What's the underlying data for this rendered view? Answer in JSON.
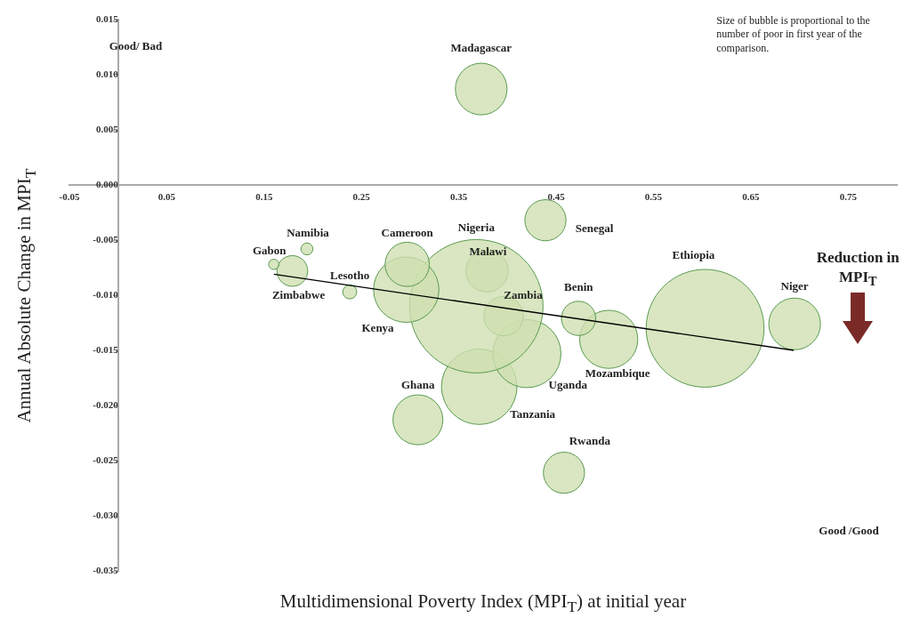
{
  "chart_data": {
    "type": "bubble",
    "xlabel": "Multidimensional Poverty Index (MPI$_{T}$) at initial year",
    "ylabel": "Annual Absolute Change in MPI$_{T}$",
    "xlim": [
      -0.05,
      0.8
    ],
    "xticks": [
      -0.05,
      0.05,
      0.15,
      0.25,
      0.35,
      0.45,
      0.55,
      0.65,
      0.75
    ],
    "ylim": [
      -0.035,
      0.015
    ],
    "yticks": [
      {
        "value": -0.035,
        "label": "-0.035"
      },
      {
        "value": -0.03,
        "label": "-0.030"
      },
      {
        "value": -0.025,
        "label": "-0.025"
      },
      {
        "value": -0.02,
        "label": "-0.020"
      },
      {
        "value": -0.015,
        "label": "-0.015"
      },
      {
        "value": -0.01,
        "label": "-0.010"
      },
      {
        "value": -0.005,
        "label": "-0.005"
      },
      {
        "value": 0,
        "label": "0.000"
      },
      {
        "value": 0.005,
        "label": "0.005"
      },
      {
        "value": 0.01,
        "label": "0.010"
      },
      {
        "value": 0.015,
        "label": "0.015"
      }
    ],
    "legend": false,
    "grid": false,
    "annotations": [
      "Good/ Bad",
      "Size of bubble is proportional to the number of poor in first year of the comparison.",
      "Reduction in MPI$_{T}$",
      "Good /Good"
    ],
    "series": [
      {
        "name": "Madagascar",
        "color": "#cfdfb0",
        "x": [
          0.373
        ],
        "values": [
          0.0087
        ],
        "sizes": [
          0.15
        ]
      },
      {
        "name": "Senegal",
        "color": "#cfdfb0",
        "x": [
          0.439
        ],
        "values": [
          -0.0032
        ],
        "sizes": [
          0.095
        ]
      },
      {
        "name": "Namibia",
        "color": "#cfdfb0",
        "x": [
          0.194
        ],
        "values": [
          -0.0058
        ],
        "sizes": [
          0.008
        ]
      },
      {
        "name": "Gabon",
        "color": "#cfdfb0",
        "x": [
          0.16
        ],
        "values": [
          -0.0072
        ],
        "sizes": [
          0.006
        ]
      },
      {
        "name": "Zimbabwe",
        "color": "#cfdfb0",
        "x": [
          0.179
        ],
        "values": [
          -0.0078
        ],
        "sizes": [
          0.053
        ]
      },
      {
        "name": "Lesotho",
        "color": "#cfdfb0",
        "x": [
          0.238
        ],
        "values": [
          -0.0097
        ],
        "sizes": [
          0.011
        ]
      },
      {
        "name": "Cameroon",
        "color": "#cfdfb0",
        "x": [
          0.297
        ],
        "values": [
          -0.0072
        ],
        "sizes": [
          0.11
        ]
      },
      {
        "name": "Kenya",
        "color": "#cfdfb0",
        "x": [
          0.296
        ],
        "values": [
          -0.0095
        ],
        "sizes": [
          0.24
        ]
      },
      {
        "name": "Nigeria",
        "color": "#cfdfb0",
        "x": [
          0.368
        ],
        "values": [
          -0.011
        ],
        "sizes": [
          1
        ]
      },
      {
        "name": "Malawi",
        "color": "#cfdfb0",
        "x": [
          0.379
        ],
        "values": [
          -0.0078
        ],
        "sizes": [
          0.1
        ]
      },
      {
        "name": "Zambia",
        "color": "#cfdfb0",
        "x": [
          0.396
        ],
        "values": [
          -0.0119
        ],
        "sizes": [
          0.087
        ]
      },
      {
        "name": "Uganda",
        "color": "#cfdfb0",
        "x": [
          0.42
        ],
        "values": [
          -0.0153
        ],
        "sizes": [
          0.26
        ]
      },
      {
        "name": "Tanzania",
        "color": "#cfdfb0",
        "x": [
          0.371
        ],
        "values": [
          -0.0183
        ],
        "sizes": [
          0.32
        ]
      },
      {
        "name": "Ghana",
        "color": "#cfdfb0",
        "x": [
          0.308
        ],
        "values": [
          -0.0213
        ],
        "sizes": [
          0.14
        ]
      },
      {
        "name": "Rwanda",
        "color": "#cfdfb0",
        "x": [
          0.458
        ],
        "values": [
          -0.0261
        ],
        "sizes": [
          0.095
        ]
      },
      {
        "name": "Benin",
        "color": "#cfdfb0",
        "x": [
          0.473
        ],
        "values": [
          -0.0121
        ],
        "sizes": [
          0.066
        ]
      },
      {
        "name": "Mozambique",
        "color": "#cfdfb0",
        "x": [
          0.504
        ],
        "values": [
          -0.014
        ],
        "sizes": [
          0.19
        ]
      },
      {
        "name": "Ethiopia",
        "color": "#cfdfb0",
        "x": [
          0.603
        ],
        "values": [
          -0.013
        ],
        "sizes": [
          0.78
        ]
      },
      {
        "name": "Niger",
        "color": "#cfdfb0",
        "x": [
          0.695
        ],
        "values": [
          -0.0126
        ],
        "sizes": [
          0.15
        ]
      },
      {
        "type": "line",
        "color": "#000000",
        "marker": "none",
        "x": [
          0.16,
          0.694
        ],
        "values": [
          -0.0081,
          -0.015
        ]
      }
    ]
  }
}
